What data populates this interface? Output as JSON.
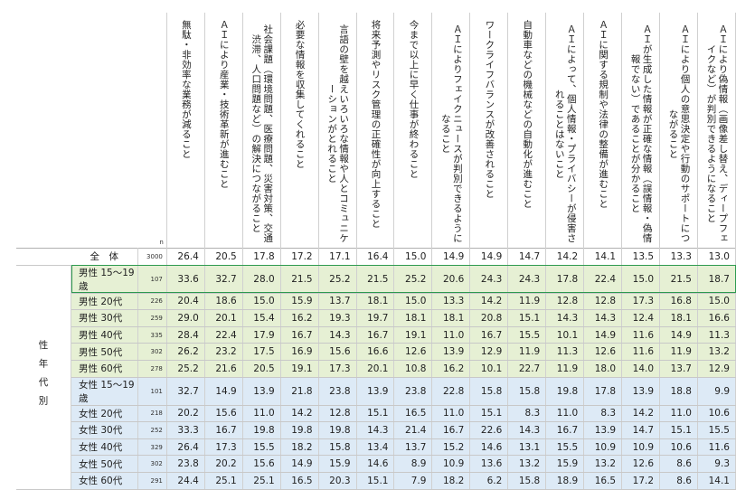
{
  "n_label": "n",
  "group_label": "性年代別",
  "columns": [
    "無駄・非効率な業務が減ること",
    "ＡＩにより産業・技術革新が進むこと",
    "社会課題（環境問題、医療問題、災害対策、交通渋滞、人口問題など）の解決につながること",
    "必要な情報を収集してくれること",
    "言語の壁を越えいろいろな情報や人とコミュニケーションがとれること",
    "将来予測やリスク管理の正確性が向上すること",
    "今まで以上に早く仕事が終わること",
    "ＡＩによりフェイクニュースが判別できるようになること",
    "ワークライフバランスが改善されること",
    "自動車などの機械などの自動化が進むこと",
    "ＡＩによって、個人情報・プライバシーが侵害されることはないこと",
    "ＡＩに関する規制や法律の整備が進むこと",
    "ＡＩが生成した情報が正確な情報（誤情報・偽情報でない）であることが分かること",
    "ＡＩにより個人の意思決定や行動のサポートにつながること",
    "ＡＩにより偽情報（画像差し替え、ディープフェイクなど）が判別できるようになること"
  ],
  "rows": [
    {
      "label": "全　体",
      "n": "3000",
      "values": [
        "26.4",
        "20.5",
        "17.8",
        "17.2",
        "17.1",
        "16.4",
        "15.0",
        "14.9",
        "14.9",
        "14.7",
        "14.2",
        "14.1",
        "13.5",
        "13.3",
        "13.0"
      ]
    },
    {
      "label": "男性 15～19歳",
      "n": "107",
      "values": [
        "33.6",
        "32.7",
        "28.0",
        "21.5",
        "25.2",
        "21.5",
        "25.2",
        "20.6",
        "24.3",
        "24.3",
        "17.8",
        "22.4",
        "15.0",
        "21.5",
        "18.7"
      ]
    },
    {
      "label": "男性 20代",
      "n": "226",
      "values": [
        "20.4",
        "18.6",
        "15.0",
        "15.9",
        "13.7",
        "18.1",
        "15.0",
        "13.3",
        "14.2",
        "11.9",
        "12.8",
        "12.8",
        "17.3",
        "16.8",
        "15.0"
      ]
    },
    {
      "label": "男性 30代",
      "n": "259",
      "values": [
        "29.0",
        "20.1",
        "15.4",
        "16.2",
        "19.3",
        "19.7",
        "18.1",
        "18.1",
        "20.8",
        "15.1",
        "14.3",
        "14.3",
        "12.4",
        "18.1",
        "16.6"
      ]
    },
    {
      "label": "男性 40代",
      "n": "335",
      "values": [
        "28.4",
        "22.4",
        "17.9",
        "16.7",
        "14.3",
        "16.7",
        "19.1",
        "11.0",
        "16.7",
        "15.5",
        "10.1",
        "14.9",
        "11.6",
        "14.9",
        "11.3"
      ]
    },
    {
      "label": "男性 50代",
      "n": "302",
      "values": [
        "26.2",
        "23.2",
        "17.5",
        "16.9",
        "15.6",
        "16.6",
        "12.6",
        "13.9",
        "12.9",
        "11.9",
        "11.3",
        "12.6",
        "11.6",
        "11.9",
        "13.2"
      ]
    },
    {
      "label": "男性 60代",
      "n": "278",
      "values": [
        "25.2",
        "21.6",
        "20.5",
        "19.1",
        "17.3",
        "20.1",
        "10.8",
        "16.2",
        "10.1",
        "22.7",
        "11.9",
        "18.0",
        "14.0",
        "13.7",
        "12.9"
      ]
    },
    {
      "label": "女性 15～19歳",
      "n": "101",
      "values": [
        "32.7",
        "14.9",
        "13.9",
        "21.8",
        "23.8",
        "13.9",
        "23.8",
        "22.8",
        "15.8",
        "15.8",
        "19.8",
        "17.8",
        "13.9",
        "18.8",
        "9.9"
      ]
    },
    {
      "label": "女性 20代",
      "n": "218",
      "values": [
        "20.2",
        "15.6",
        "11.0",
        "14.2",
        "12.8",
        "15.1",
        "16.5",
        "11.0",
        "15.1",
        "8.3",
        "11.0",
        "8.3",
        "14.2",
        "11.0",
        "10.6"
      ]
    },
    {
      "label": "女性 30代",
      "n": "252",
      "values": [
        "33.3",
        "16.7",
        "19.8",
        "19.8",
        "19.8",
        "14.3",
        "21.4",
        "16.7",
        "22.6",
        "14.3",
        "16.7",
        "13.9",
        "14.7",
        "15.1",
        "15.5"
      ]
    },
    {
      "label": "女性 40代",
      "n": "329",
      "values": [
        "26.4",
        "17.3",
        "15.5",
        "18.2",
        "15.8",
        "13.4",
        "13.7",
        "15.2",
        "14.6",
        "13.1",
        "15.5",
        "10.9",
        "10.9",
        "10.6",
        "11.6"
      ]
    },
    {
      "label": "女性 50代",
      "n": "302",
      "values": [
        "23.8",
        "20.2",
        "15.6",
        "14.9",
        "15.9",
        "14.6",
        "8.9",
        "10.9",
        "13.6",
        "13.2",
        "15.9",
        "13.2",
        "12.6",
        "8.6",
        "9.3"
      ]
    },
    {
      "label": "女性 60代",
      "n": "291",
      "values": [
        "24.4",
        "25.1",
        "25.1",
        "16.5",
        "20.3",
        "15.1",
        "7.9",
        "18.2",
        "6.2",
        "15.8",
        "18.9",
        "16.5",
        "17.2",
        "8.6",
        "14.1"
      ]
    }
  ]
}
